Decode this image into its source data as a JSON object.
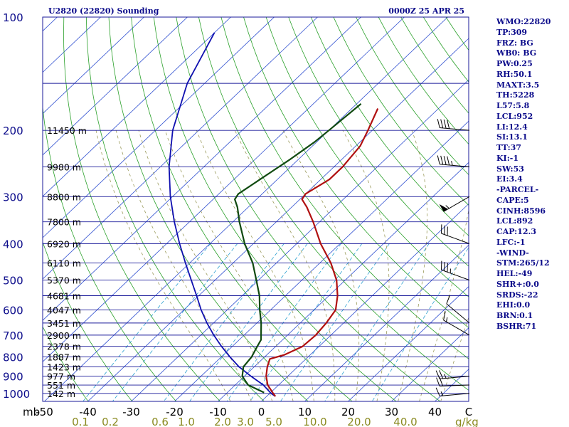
{
  "header": {
    "station": "U2820 (22820) Sounding",
    "valid_time": "0000Z 25 APR 25"
  },
  "colors": {
    "isobar": "#1a1a9a",
    "text": "#0a0a8a",
    "isotherm": "#3050d0",
    "dry_adiabat": "#2aa02a",
    "moist_adiabat": "#9a9a5a",
    "mixing_ratio": "#2aa0d0",
    "temperature": "#b01010",
    "dewpoint": "#104a10",
    "parcel": "#1010b0",
    "mixing_axis_labels": "#8a8a20",
    "wind_barbs": "#000000"
  },
  "chart_data": {
    "type": "skew-t",
    "pressure_levels": [
      100,
      200,
      300,
      400,
      500,
      600,
      700,
      800,
      900,
      1000
    ],
    "pressure_unit_label": "mb",
    "temperature_ticks": [
      "-50",
      "-40",
      "-30",
      "-20",
      "-10",
      "0",
      "10",
      "20",
      "30",
      "40"
    ],
    "mixing_ratio_labels": [
      "0.1",
      "0.2",
      "0.6",
      "1.0",
      "2.0",
      "3.0",
      "5.0",
      "10.0",
      "20.0",
      "40.0"
    ],
    "mixing_ratio_unit": "g/kg",
    "corner_tick_label": "C",
    "height_labels": [
      {
        "p": 200,
        "text": "11450 m"
      },
      {
        "p": 250,
        "text": "9980 m"
      },
      {
        "p": 300,
        "text": "8800 m"
      },
      {
        "p": 350,
        "text": "7800 m"
      },
      {
        "p": 400,
        "text": "6920 m"
      },
      {
        "p": 450,
        "text": "6110 m"
      },
      {
        "p": 500,
        "text": "5370 m"
      },
      {
        "p": 550,
        "text": "4681 m"
      },
      {
        "p": 600,
        "text": "4047 m"
      },
      {
        "p": 650,
        "text": "3451 m"
      },
      {
        "p": 700,
        "text": "2900 m"
      },
      {
        "p": 750,
        "text": "2378 m"
      },
      {
        "p": 800,
        "text": "1887 m"
      },
      {
        "p": 850,
        "text": "1423 m"
      },
      {
        "p": 900,
        "text": "977 m"
      },
      {
        "p": 950,
        "text": "551 m"
      },
      {
        "p": 1000,
        "text": "142 m"
      }
    ],
    "temperature_profile": [
      [
        1018,
        2.0
      ],
      [
        1000,
        0.8
      ],
      [
        950,
        -2.5
      ],
      [
        900,
        -5.0
      ],
      [
        850,
        -7.0
      ],
      [
        810,
        -8.3
      ],
      [
        790,
        -6.0
      ],
      [
        750,
        -3.8
      ],
      [
        700,
        -3.5
      ],
      [
        650,
        -4.0
      ],
      [
        600,
        -5.0
      ],
      [
        550,
        -8.0
      ],
      [
        500,
        -12.0
      ],
      [
        450,
        -17.5
      ],
      [
        400,
        -24.5
      ],
      [
        350,
        -31.5
      ],
      [
        320,
        -36.5
      ],
      [
        305,
        -39.5
      ],
      [
        295,
        -40.0
      ],
      [
        270,
        -38.0
      ],
      [
        250,
        -38.0
      ],
      [
        220,
        -39.0
      ],
      [
        200,
        -41.0
      ],
      [
        175,
        -44.0
      ]
    ],
    "dewpoint_profile": [
      [
        995,
        -1.5
      ],
      [
        950,
        -7.0
      ],
      [
        900,
        -10.5
      ],
      [
        850,
        -12.5
      ],
      [
        800,
        -13.0
      ],
      [
        760,
        -14.0
      ],
      [
        720,
        -15.0
      ],
      [
        650,
        -19.0
      ],
      [
        600,
        -22.5
      ],
      [
        550,
        -26.0
      ],
      [
        500,
        -30.5
      ],
      [
        450,
        -35.5
      ],
      [
        400,
        -42.0
      ],
      [
        350,
        -48.5
      ],
      [
        320,
        -52.5
      ],
      [
        305,
        -55.0
      ],
      [
        295,
        -55.5
      ],
      [
        270,
        -54.0
      ],
      [
        240,
        -52.0
      ],
      [
        215,
        -50.5
      ],
      [
        200,
        -50.0
      ],
      [
        170,
        -49.0
      ]
    ],
    "parcel_profile": [
      [
        1018,
        2.0
      ],
      [
        1000,
        0.3
      ],
      [
        950,
        -3.5
      ],
      [
        900,
        -8.5
      ],
      [
        850,
        -13.5
      ],
      [
        800,
        -18.0
      ],
      [
        750,
        -22.5
      ],
      [
        700,
        -27.0
      ],
      [
        650,
        -31.5
      ],
      [
        600,
        -36.0
      ],
      [
        550,
        -40.5
      ],
      [
        500,
        -45.5
      ],
      [
        450,
        -51.0
      ],
      [
        400,
        -57.0
      ],
      [
        350,
        -63.5
      ],
      [
        300,
        -70.5
      ],
      [
        250,
        -78.0
      ],
      [
        200,
        -86.0
      ],
      [
        150,
        -94.0
      ],
      [
        110,
        -100.0
      ]
    ],
    "wind_barbs": [
      {
        "p": 1000,
        "dir": 265,
        "kt": 15
      },
      {
        "p": 950,
        "dir": 268,
        "kt": 20
      },
      {
        "p": 900,
        "dir": 265,
        "kt": 25
      },
      {
        "p": 700,
        "dir": 300,
        "kt": 15
      },
      {
        "p": 650,
        "dir": 310,
        "kt": 10
      },
      {
        "p": 500,
        "dir": 290,
        "kt": 35
      },
      {
        "p": 400,
        "dir": 290,
        "kt": 30
      },
      {
        "p": 300,
        "dir": 240,
        "kt": 55
      },
      {
        "p": 250,
        "dir": 275,
        "kt": 45
      },
      {
        "p": 200,
        "dir": 275,
        "kt": 40
      }
    ]
  },
  "indices": [
    "WMO:22820",
    "TP:309",
    "FRZ: BG",
    "WB0: BG",
    "PW:0.25",
    "RH:50.1",
    "MAXT:3.5",
    "TH:5228",
    "L57:5.8",
    "LCL:952",
    "LI:12.4",
    "SI:13.1",
    "TT:37",
    "KI:-1",
    "SW:53",
    "EI:3.4",
    "-PARCEL-",
    "CAPE:5",
    "CINH:8596",
    "LCL:892",
    "CAP:12.3",
    "LFC:-1",
    "-WIND-",
    "STM:265/12",
    "HEL:-49",
    "SHR+:0.0",
    "SRDS:-22",
    "EHI:0.0",
    "BRN:0.1",
    "BSHR:71"
  ]
}
